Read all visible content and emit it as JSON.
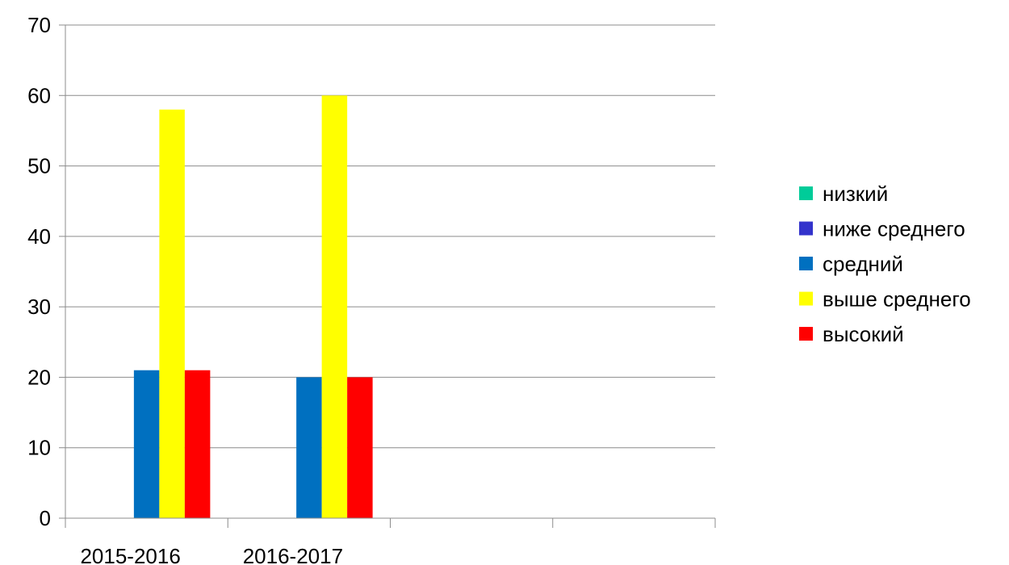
{
  "chart_data": {
    "type": "bar",
    "categories": [
      "2015-2016",
      "2016-2017",
      "",
      ""
    ],
    "series": [
      {
        "name": "низкий",
        "color": "#00CC99",
        "values": [
          0,
          0,
          null,
          null
        ]
      },
      {
        "name": "ниже среднего",
        "color": "#3333CC",
        "values": [
          0,
          0,
          null,
          null
        ]
      },
      {
        "name": "средний",
        "color": "#0070C0",
        "values": [
          21,
          20,
          null,
          null
        ]
      },
      {
        "name": "выше среднего",
        "color": "#FFFF00",
        "values": [
          58,
          60,
          null,
          null
        ]
      },
      {
        "name": "высокий",
        "color": "#FF0000",
        "values": [
          21,
          20,
          null,
          null
        ]
      }
    ],
    "ylim": [
      0,
      70
    ],
    "yticks": [
      0,
      10,
      20,
      30,
      40,
      50,
      60,
      70
    ],
    "grid": true,
    "legend_position": "right",
    "title": "",
    "xlabel": "",
    "ylabel": ""
  }
}
